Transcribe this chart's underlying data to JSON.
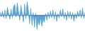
{
  "values": [
    8,
    -5,
    12,
    -8,
    15,
    -10,
    22,
    5,
    -12,
    18,
    -8,
    25,
    30,
    -5,
    35,
    10,
    -15,
    28,
    5,
    -20,
    32,
    -10,
    38,
    15,
    -25,
    20,
    -30,
    8,
    -35,
    5,
    -40,
    -15,
    -28,
    -5,
    -32,
    -10,
    -20,
    5,
    -15,
    8,
    -10,
    12,
    -8,
    15,
    -12,
    10,
    -18,
    5,
    -8,
    15,
    -5,
    18,
    -10,
    8,
    -15,
    12,
    -8,
    10,
    -12,
    8,
    -18,
    5,
    -10,
    12,
    -5,
    15,
    -8,
    20,
    -10,
    8
  ],
  "line_color": "#4fa8e0",
  "fill_color": "#5ba3d9",
  "background_color": "#ffffff",
  "ylim_min": -45,
  "ylim_max": 45
}
